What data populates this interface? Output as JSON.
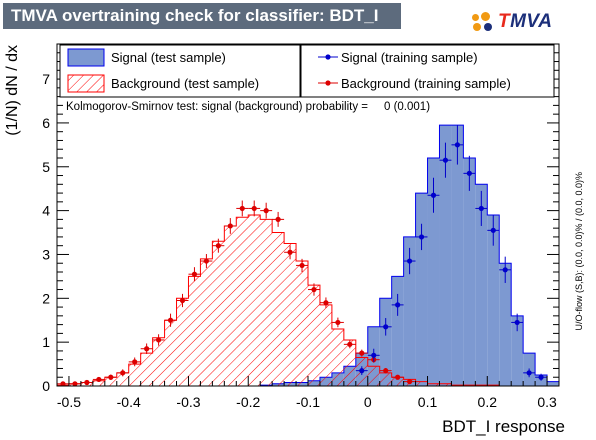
{
  "header": {
    "title": "TMVA overtraining check for classifier: BDT_I",
    "logo_text": "TMVA",
    "logo_accent_letter": "T",
    "logo_rest": "MVA"
  },
  "colors": {
    "title_bg": "#5d6b7d",
    "signal_fill": "#7d99d1",
    "signal_line": "#0000ee",
    "background_hatch": "#ff0000",
    "signal_points": "#0000cc",
    "background_points": "#dd0000",
    "logo_blue": "#1c2f7a",
    "logo_orange": "#f19a13"
  },
  "legend": {
    "signal_test": "Signal (test sample)",
    "background_test": "Background (test sample)",
    "signal_train": "Signal (training sample)",
    "background_train": "Background (training sample)"
  },
  "annotation": "Kolmogorov-Smirnov test: signal (background) probability =     0 (0.001)",
  "side_note": "U/O-flow (S,B): (0.0, 0.0)% / (0.0, 0.0)%",
  "chart_data": {
    "type": "bar",
    "xlabel": "BDT_I response",
    "ylabel": "(1/N) dN / dx",
    "xlim": [
      -0.52,
      0.32
    ],
    "ylim": [
      0,
      7.8
    ],
    "x_ticks": [
      -0.5,
      -0.4,
      -0.3,
      -0.2,
      -0.1,
      0,
      0.1,
      0.2,
      0.3
    ],
    "x_tick_labels": [
      "-0.5",
      "-0.4",
      "-0.3",
      "-0.2",
      "-0.1",
      "0",
      "0.1",
      "0.2",
      "0.3"
    ],
    "y_ticks": [
      0,
      1,
      2,
      3,
      4,
      5,
      6,
      7
    ],
    "y_tick_labels": [
      "0",
      "1",
      "2",
      "3",
      "4",
      "5",
      "6",
      "7"
    ],
    "bin_edges": [
      -0.52,
      -0.5,
      -0.48,
      -0.46,
      -0.44,
      -0.42,
      -0.4,
      -0.38,
      -0.36,
      -0.34,
      -0.32,
      -0.3,
      -0.28,
      -0.26,
      -0.24,
      -0.22,
      -0.2,
      -0.18,
      -0.16,
      -0.14,
      -0.12,
      -0.1,
      -0.08,
      -0.06,
      -0.04,
      -0.02,
      0.0,
      0.02,
      0.04,
      0.06,
      0.08,
      0.1,
      0.12,
      0.14,
      0.16,
      0.18,
      0.2,
      0.22,
      0.24,
      0.26,
      0.28,
      0.3,
      0.32
    ],
    "series": [
      {
        "name": "Signal (test sample)",
        "style": "filled",
        "values": [
          0,
          0,
          0,
          0,
          0,
          0,
          0,
          0,
          0,
          0,
          0,
          0,
          0,
          0,
          0,
          0,
          0,
          0.02,
          0.05,
          0.08,
          0.08,
          0.12,
          0.2,
          0.3,
          0.45,
          0.75,
          1.35,
          2.0,
          2.5,
          3.4,
          4.4,
          5.2,
          5.95,
          5.95,
          5.2,
          4.6,
          3.9,
          2.8,
          1.6,
          0.75,
          0.25,
          0.1
        ]
      },
      {
        "name": "Background (test sample)",
        "style": "hatched",
        "values": [
          0.02,
          0.05,
          0.08,
          0.12,
          0.2,
          0.3,
          0.5,
          0.75,
          1.1,
          1.5,
          2.0,
          2.5,
          2.9,
          3.3,
          3.65,
          3.85,
          3.9,
          3.8,
          3.5,
          3.25,
          2.85,
          2.3,
          1.85,
          1.3,
          1.05,
          0.65,
          0.45,
          0.3,
          0.2,
          0.15,
          0.1,
          0.05,
          0.05,
          0.02,
          0.02,
          0.02,
          0.02,
          0,
          0,
          0,
          0,
          0
        ]
      },
      {
        "name": "Signal (training sample)",
        "style": "points",
        "x": [
          -0.01,
          0.01,
          0.03,
          0.05,
          0.07,
          0.09,
          0.11,
          0.13,
          0.15,
          0.17,
          0.19,
          0.21,
          0.23,
          0.25,
          0.27,
          0.29
        ],
        "values": [
          0.35,
          0.7,
          1.35,
          1.85,
          2.85,
          3.4,
          4.35,
          5.15,
          5.5,
          4.85,
          4.05,
          3.55,
          2.65,
          1.45,
          0.3,
          0.2
        ],
        "errors": [
          0.1,
          0.15,
          0.2,
          0.25,
          0.3,
          0.3,
          0.4,
          0.4,
          0.45,
          0.4,
          0.4,
          0.35,
          0.3,
          0.2,
          0.1,
          0.08
        ]
      },
      {
        "name": "Background (training sample)",
        "style": "points",
        "x": [
          -0.51,
          -0.49,
          -0.47,
          -0.45,
          -0.43,
          -0.41,
          -0.39,
          -0.37,
          -0.35,
          -0.33,
          -0.31,
          -0.29,
          -0.27,
          -0.25,
          -0.23,
          -0.21,
          -0.19,
          -0.17,
          -0.15,
          -0.13,
          -0.11,
          -0.09,
          -0.07,
          -0.05,
          -0.03,
          -0.01,
          0.01,
          0.03,
          0.05,
          0.07
        ],
        "values": [
          0.05,
          0.05,
          0.08,
          0.15,
          0.2,
          0.3,
          0.55,
          0.85,
          1.05,
          1.5,
          1.95,
          2.55,
          2.85,
          3.2,
          3.65,
          4.05,
          4.05,
          4.0,
          3.8,
          3.05,
          2.75,
          2.2,
          1.9,
          1.45,
          0.95,
          0.75,
          0.6,
          0.35,
          0.2,
          0.1
        ],
        "errors": [
          0.03,
          0.03,
          0.04,
          0.05,
          0.06,
          0.08,
          0.1,
          0.12,
          0.13,
          0.15,
          0.15,
          0.16,
          0.16,
          0.16,
          0.18,
          0.18,
          0.18,
          0.18,
          0.17,
          0.16,
          0.15,
          0.14,
          0.12,
          0.11,
          0.09,
          0.08,
          0.07,
          0.06,
          0.04,
          0.03
        ]
      }
    ]
  }
}
